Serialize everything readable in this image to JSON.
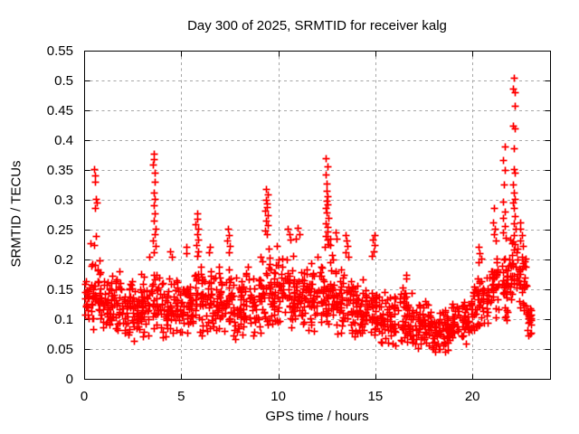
{
  "chart_data": {
    "type": "scatter",
    "title": "Day 300 of 2025, SRMTID for receiver kalg",
    "xlabel": "GPS time / hours",
    "ylabel": "SRMTID / TECUs",
    "xlim": [
      0,
      24
    ],
    "ylim": [
      0,
      0.55
    ],
    "xticks": [
      {
        "v": 0,
        "label": "0"
      },
      {
        "v": 5,
        "label": "5"
      },
      {
        "v": 10,
        "label": "10"
      },
      {
        "v": 15,
        "label": "15"
      },
      {
        "v": 20,
        "label": "20"
      }
    ],
    "yticks": [
      {
        "v": 0,
        "label": "0"
      },
      {
        "v": 0.05,
        "label": "0.05"
      },
      {
        "v": 0.1,
        "label": "0.1"
      },
      {
        "v": 0.15,
        "label": "0.15"
      },
      {
        "v": 0.2,
        "label": "0.2"
      },
      {
        "v": 0.25,
        "label": "0.25"
      },
      {
        "v": 0.3,
        "label": "0.3"
      },
      {
        "v": 0.35,
        "label": "0.35"
      },
      {
        "v": 0.4,
        "label": "0.4"
      },
      {
        "v": 0.45,
        "label": "0.45"
      },
      {
        "v": 0.5,
        "label": "0.5"
      },
      {
        "v": 0.55,
        "label": "0.55"
      }
    ],
    "grid": true,
    "legend": "none",
    "marker": {
      "shape": "plus",
      "color": "#ff0000"
    },
    "colors": {
      "axis": "#000000",
      "grid": "#a6a6a6",
      "text": "#000000",
      "background": "#ffffff"
    },
    "spike_points": [
      [
        0.52,
        0.352
      ],
      [
        0.56,
        0.341
      ],
      [
        0.55,
        0.331
      ],
      [
        0.6,
        0.302
      ],
      [
        0.63,
        0.295
      ],
      [
        0.58,
        0.287
      ],
      [
        0.61,
        0.24
      ],
      [
        0.5,
        0.225
      ],
      [
        0.3,
        0.228
      ],
      [
        3.6,
        0.377
      ],
      [
        3.63,
        0.368
      ],
      [
        3.58,
        0.359
      ],
      [
        3.62,
        0.346
      ],
      [
        3.66,
        0.33
      ],
      [
        3.6,
        0.312
      ],
      [
        3.65,
        0.301
      ],
      [
        3.58,
        0.291
      ],
      [
        3.64,
        0.278
      ],
      [
        3.6,
        0.265
      ],
      [
        3.68,
        0.252
      ],
      [
        3.62,
        0.243
      ],
      [
        3.57,
        0.232
      ],
      [
        3.65,
        0.222
      ],
      [
        3.6,
        0.212
      ],
      [
        3.4,
        0.205
      ],
      [
        4.45,
        0.213
      ],
      [
        4.5,
        0.205
      ],
      [
        5.25,
        0.221
      ],
      [
        5.3,
        0.21
      ],
      [
        5.78,
        0.277
      ],
      [
        5.84,
        0.268
      ],
      [
        5.75,
        0.259
      ],
      [
        5.88,
        0.251
      ],
      [
        5.8,
        0.243
      ],
      [
        5.85,
        0.233
      ],
      [
        5.78,
        0.224
      ],
      [
        5.9,
        0.214
      ],
      [
        5.82,
        0.206
      ],
      [
        6.5,
        0.221
      ],
      [
        6.45,
        0.212
      ],
      [
        7.4,
        0.251
      ],
      [
        7.46,
        0.241
      ],
      [
        7.38,
        0.232
      ],
      [
        7.5,
        0.222
      ],
      [
        7.43,
        0.212
      ],
      [
        9.38,
        0.318
      ],
      [
        9.42,
        0.309
      ],
      [
        9.35,
        0.3
      ],
      [
        9.4,
        0.294
      ],
      [
        9.44,
        0.288
      ],
      [
        9.37,
        0.282
      ],
      [
        9.46,
        0.274
      ],
      [
        9.4,
        0.265
      ],
      [
        9.5,
        0.257
      ],
      [
        9.34,
        0.249
      ],
      [
        9.43,
        0.242
      ],
      [
        9.95,
        0.222
      ],
      [
        10.48,
        0.252
      ],
      [
        10.55,
        0.243
      ],
      [
        10.62,
        0.233
      ],
      [
        11.0,
        0.253
      ],
      [
        11.05,
        0.243
      ],
      [
        10.95,
        0.235
      ],
      [
        12.44,
        0.37
      ],
      [
        12.5,
        0.356
      ],
      [
        12.46,
        0.342
      ],
      [
        12.52,
        0.328
      ],
      [
        12.48,
        0.315
      ],
      [
        12.53,
        0.306
      ],
      [
        12.49,
        0.299
      ],
      [
        12.55,
        0.293
      ],
      [
        12.45,
        0.287
      ],
      [
        12.51,
        0.279
      ],
      [
        12.58,
        0.269
      ],
      [
        12.42,
        0.261
      ],
      [
        12.5,
        0.254
      ],
      [
        12.56,
        0.247
      ],
      [
        12.46,
        0.24
      ],
      [
        12.52,
        0.233
      ],
      [
        12.6,
        0.226
      ],
      [
        12.4,
        0.221
      ],
      [
        12.65,
        0.235
      ],
      [
        12.7,
        0.225
      ],
      [
        12.95,
        0.245
      ],
      [
        13.0,
        0.235
      ],
      [
        13.45,
        0.241
      ],
      [
        13.5,
        0.232
      ],
      [
        13.55,
        0.222
      ],
      [
        13.48,
        0.212
      ],
      [
        13.58,
        0.205
      ],
      [
        14.88,
        0.234
      ],
      [
        14.93,
        0.224
      ],
      [
        14.95,
        0.241
      ],
      [
        14.9,
        0.214
      ],
      [
        14.85,
        0.206
      ],
      [
        16.6,
        0.175
      ],
      [
        16.55,
        0.168
      ],
      [
        20.28,
        0.221
      ],
      [
        20.35,
        0.211
      ],
      [
        20.42,
        0.201
      ],
      [
        20.3,
        0.195
      ],
      [
        21.1,
        0.286
      ],
      [
        21.05,
        0.262
      ],
      [
        21.15,
        0.251
      ],
      [
        21.1,
        0.242
      ],
      [
        21.2,
        0.232
      ],
      [
        21.63,
        0.39
      ],
      [
        21.6,
        0.366
      ],
      [
        21.66,
        0.35
      ],
      [
        21.62,
        0.326
      ],
      [
        21.6,
        0.297
      ],
      [
        21.68,
        0.281
      ],
      [
        21.58,
        0.27
      ],
      [
        21.65,
        0.256
      ],
      [
        21.6,
        0.246
      ],
      [
        21.7,
        0.236
      ],
      [
        22.14,
        0.505
      ],
      [
        22.12,
        0.487
      ],
      [
        22.17,
        0.48
      ],
      [
        22.15,
        0.458
      ],
      [
        22.11,
        0.425
      ],
      [
        22.19,
        0.419
      ],
      [
        22.15,
        0.387
      ],
      [
        22.1,
        0.352
      ],
      [
        22.2,
        0.345
      ],
      [
        22.13,
        0.326
      ],
      [
        22.16,
        0.312
      ],
      [
        22.21,
        0.301
      ],
      [
        22.09,
        0.295
      ],
      [
        22.15,
        0.286
      ],
      [
        22.18,
        0.272
      ],
      [
        22.1,
        0.261
      ],
      [
        22.21,
        0.251
      ],
      [
        22.15,
        0.241
      ],
      [
        22.09,
        0.231
      ],
      [
        22.2,
        0.226
      ],
      [
        22.14,
        0.216
      ],
      [
        22.45,
        0.262
      ],
      [
        22.5,
        0.251
      ],
      [
        22.55,
        0.241
      ],
      [
        22.48,
        0.232
      ],
      [
        22.6,
        0.222
      ]
    ],
    "band_clusters": [
      [
        0.0,
        0.95,
        0.075,
        0.2,
        65
      ],
      [
        0.95,
        1.9,
        0.07,
        0.185,
        70
      ],
      [
        1.9,
        2.9,
        0.055,
        0.17,
        70
      ],
      [
        2.9,
        3.9,
        0.06,
        0.19,
        65
      ],
      [
        3.9,
        4.9,
        0.06,
        0.175,
        65
      ],
      [
        4.9,
        5.9,
        0.07,
        0.19,
        65
      ],
      [
        5.9,
        6.9,
        0.06,
        0.2,
        65
      ],
      [
        6.9,
        7.9,
        0.055,
        0.2,
        65
      ],
      [
        7.9,
        8.9,
        0.06,
        0.195,
        68
      ],
      [
        8.9,
        9.9,
        0.075,
        0.225,
        68
      ],
      [
        9.9,
        10.9,
        0.075,
        0.22,
        68
      ],
      [
        10.9,
        11.9,
        0.07,
        0.215,
        70
      ],
      [
        11.9,
        12.9,
        0.075,
        0.215,
        68
      ],
      [
        12.9,
        13.9,
        0.065,
        0.195,
        66
      ],
      [
        13.9,
        14.9,
        0.055,
        0.175,
        66
      ],
      [
        14.9,
        15.9,
        0.05,
        0.155,
        66
      ],
      [
        15.9,
        16.9,
        0.048,
        0.16,
        66
      ],
      [
        16.9,
        17.9,
        0.045,
        0.145,
        68
      ],
      [
        17.9,
        18.9,
        0.04,
        0.125,
        70
      ],
      [
        18.9,
        19.9,
        0.05,
        0.135,
        68
      ],
      [
        19.9,
        20.9,
        0.075,
        0.18,
        66
      ],
      [
        20.9,
        21.9,
        0.095,
        0.22,
        66
      ],
      [
        21.9,
        22.8,
        0.1,
        0.235,
        60
      ],
      [
        22.8,
        23.05,
        0.065,
        0.135,
        22
      ]
    ]
  }
}
